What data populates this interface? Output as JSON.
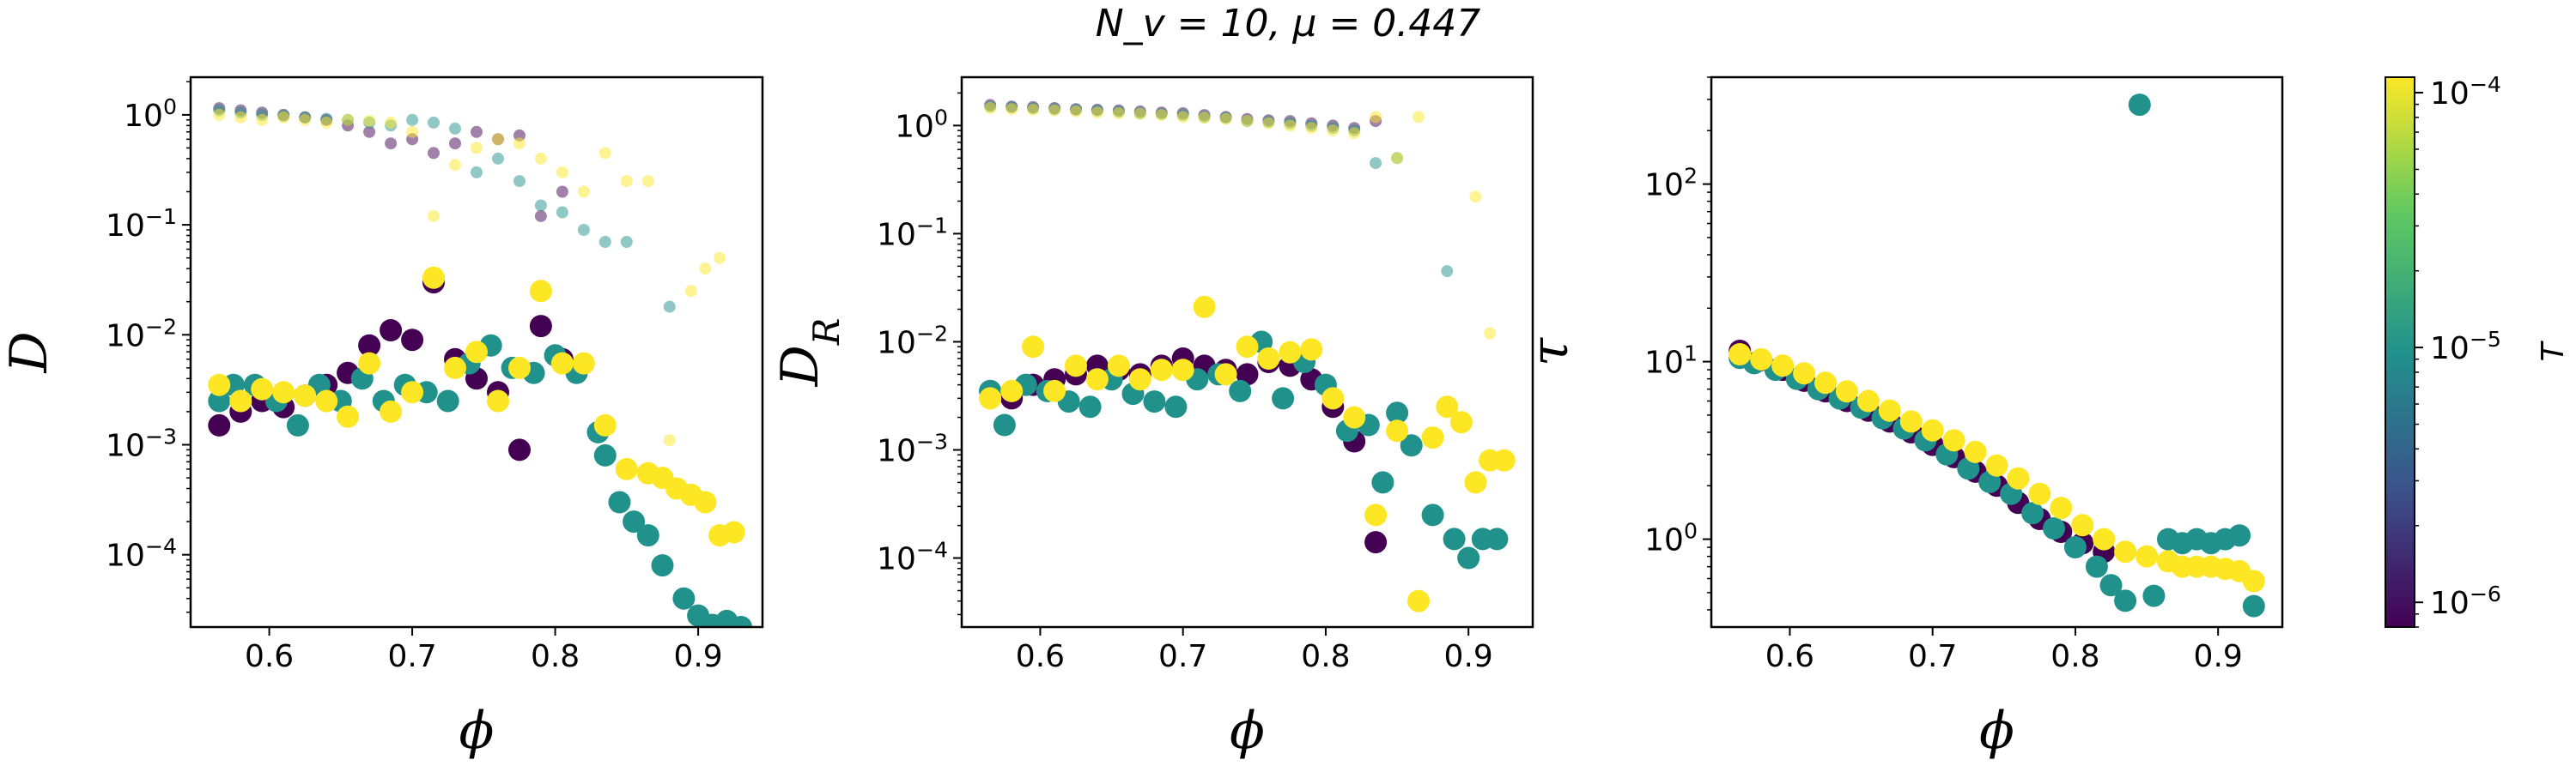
{
  "figure": {
    "suptitle": "N_v = 10, μ = 0.447"
  },
  "colorbar": {
    "label": "T",
    "scale": "log",
    "range": [
      8e-07,
      0.000115
    ],
    "ticks": [
      "10^-6",
      "10^-5",
      "10^-4"
    ],
    "colormap": [
      "#440154",
      "#3b528b",
      "#21918c",
      "#5ec962",
      "#fde725"
    ]
  },
  "chart_data": [
    {
      "type": "scatter",
      "title": "",
      "xlabel": "ϕ",
      "ylabel": "D",
      "xlim": [
        0.545,
        0.945
      ],
      "ylim": [
        2.2e-05,
        2.2
      ],
      "yscale": "log",
      "xticks": [
        "0.6",
        "0.7",
        "0.8",
        "0.9"
      ],
      "yticks": [
        "10^-4",
        "10^-3",
        "10^-2",
        "10^-1",
        "10^0"
      ],
      "series": [
        {
          "color": "#440154",
          "kind": "rotational (faint)",
          "x": [
            0.565,
            0.58,
            0.595,
            0.61,
            0.625,
            0.64,
            0.655,
            0.67,
            0.685,
            0.7,
            0.715,
            0.73,
            0.745,
            0.76,
            0.775,
            0.79,
            0.805
          ],
          "y": [
            1.15,
            1.1,
            1.05,
            1.0,
            0.95,
            0.9,
            0.8,
            0.7,
            0.55,
            0.6,
            0.45,
            0.55,
            0.7,
            0.6,
            0.65,
            0.12,
            0.2
          ]
        },
        {
          "color": "#21918c",
          "kind": "rotational (faint)",
          "x": [
            0.565,
            0.58,
            0.595,
            0.61,
            0.625,
            0.64,
            0.655,
            0.67,
            0.685,
            0.7,
            0.715,
            0.73,
            0.745,
            0.76,
            0.775,
            0.79,
            0.805,
            0.82,
            0.835,
            0.85,
            0.88
          ],
          "y": [
            1.1,
            1.05,
            1.0,
            0.98,
            0.95,
            0.92,
            0.9,
            0.85,
            0.8,
            0.9,
            0.85,
            0.75,
            0.3,
            0.4,
            0.25,
            0.15,
            0.13,
            0.09,
            0.07,
            0.07,
            0.018
          ]
        },
        {
          "color": "#fde725",
          "kind": "rotational (faint)",
          "x": [
            0.565,
            0.58,
            0.595,
            0.61,
            0.625,
            0.64,
            0.655,
            0.67,
            0.685,
            0.7,
            0.715,
            0.73,
            0.745,
            0.76,
            0.775,
            0.79,
            0.805,
            0.82,
            0.835,
            0.85,
            0.865,
            0.88,
            0.895,
            0.905,
            0.915
          ],
          "y": [
            1.0,
            0.95,
            0.9,
            0.95,
            0.9,
            0.85,
            0.9,
            0.88,
            0.85,
            0.7,
            0.12,
            0.35,
            0.5,
            0.6,
            0.55,
            0.4,
            0.3,
            0.2,
            0.45,
            0.25,
            0.25,
            0.0011,
            0.025,
            0.04,
            0.05
          ]
        },
        {
          "color": "#440154",
          "x": [
            0.565,
            0.58,
            0.595,
            0.61,
            0.625,
            0.64,
            0.655,
            0.67,
            0.685,
            0.7,
            0.715,
            0.73,
            0.745,
            0.76,
            0.775,
            0.79,
            0.805
          ],
          "y": [
            0.0015,
            0.002,
            0.0025,
            0.0022,
            0.0028,
            0.0035,
            0.0045,
            0.008,
            0.011,
            0.009,
            0.03,
            0.006,
            0.004,
            0.003,
            0.0009,
            0.012,
            0.006
          ]
        },
        {
          "color": "#21918c",
          "x": [
            0.565,
            0.575,
            0.59,
            0.605,
            0.62,
            0.635,
            0.65,
            0.665,
            0.68,
            0.695,
            0.71,
            0.725,
            0.74,
            0.755,
            0.77,
            0.785,
            0.8,
            0.815,
            0.83,
            0.835,
            0.845,
            0.855,
            0.865,
            0.875,
            0.89,
            0.9,
            0.91,
            0.92,
            0.93
          ],
          "y": [
            0.0025,
            0.0035,
            0.0035,
            0.0025,
            0.0015,
            0.0035,
            0.0025,
            0.004,
            0.0025,
            0.0035,
            0.003,
            0.0025,
            0.0055,
            0.008,
            0.005,
            0.0045,
            0.0065,
            0.0045,
            0.0013,
            0.0008,
            0.0003,
            0.0002,
            0.00015,
            8e-05,
            4e-05,
            2.8e-05,
            2.3e-05,
            2.5e-05,
            2.2e-05
          ]
        },
        {
          "color": "#fde725",
          "x": [
            0.565,
            0.58,
            0.595,
            0.61,
            0.625,
            0.64,
            0.655,
            0.67,
            0.685,
            0.7,
            0.715,
            0.73,
            0.745,
            0.76,
            0.775,
            0.79,
            0.805,
            0.82,
            0.835,
            0.85,
            0.865,
            0.875,
            0.885,
            0.895,
            0.905,
            0.915,
            0.925
          ],
          "y": [
            0.0035,
            0.0025,
            0.0032,
            0.003,
            0.0028,
            0.0025,
            0.0018,
            0.0055,
            0.002,
            0.003,
            0.033,
            0.005,
            0.007,
            0.0025,
            0.005,
            0.025,
            0.0055,
            0.0055,
            0.0015,
            0.0006,
            0.00055,
            0.0005,
            0.0004,
            0.00035,
            0.0003,
            0.00015,
            0.00016
          ]
        }
      ]
    },
    {
      "type": "scatter",
      "title": "",
      "xlabel": "ϕ",
      "ylabel": "D_R",
      "xlim": [
        0.545,
        0.945
      ],
      "ylim": [
        2.3e-05,
        2.8
      ],
      "yscale": "log",
      "xticks": [
        "0.6",
        "0.7",
        "0.8",
        "0.9"
      ],
      "yticks": [
        "10^-4",
        "10^-3",
        "10^-2",
        "10^-1",
        "10^0"
      ],
      "series": [
        {
          "color": "#440154",
          "kind": "rotational (faint)",
          "x": [
            0.565,
            0.58,
            0.595,
            0.61,
            0.625,
            0.64,
            0.655,
            0.67,
            0.685,
            0.7,
            0.715,
            0.73,
            0.745,
            0.76,
            0.775,
            0.79,
            0.805,
            0.82,
            0.835
          ],
          "y": [
            1.55,
            1.5,
            1.48,
            1.45,
            1.42,
            1.4,
            1.38,
            1.35,
            1.32,
            1.3,
            1.25,
            1.2,
            1.15,
            1.12,
            1.1,
            1.05,
            1.0,
            0.95,
            1.1
          ]
        },
        {
          "color": "#21918c",
          "kind": "rotational (faint)",
          "x": [
            0.565,
            0.58,
            0.595,
            0.61,
            0.625,
            0.64,
            0.655,
            0.67,
            0.685,
            0.7,
            0.715,
            0.73,
            0.745,
            0.76,
            0.775,
            0.79,
            0.805,
            0.82,
            0.835,
            0.85,
            0.885
          ],
          "y": [
            1.5,
            1.48,
            1.45,
            1.42,
            1.4,
            1.38,
            1.35,
            1.3,
            1.28,
            1.25,
            1.2,
            1.18,
            1.1,
            1.08,
            1.05,
            1.0,
            0.95,
            0.9,
            0.45,
            0.5,
            0.045
          ]
        },
        {
          "color": "#fde725",
          "kind": "rotational (faint)",
          "x": [
            0.565,
            0.58,
            0.595,
            0.61,
            0.625,
            0.64,
            0.655,
            0.67,
            0.685,
            0.7,
            0.715,
            0.73,
            0.745,
            0.76,
            0.775,
            0.79,
            0.805,
            0.82,
            0.835,
            0.85,
            0.865,
            0.905,
            0.915
          ],
          "y": [
            1.45,
            1.42,
            1.4,
            1.38,
            1.35,
            1.32,
            1.3,
            1.28,
            1.25,
            1.2,
            1.18,
            1.15,
            1.1,
            1.05,
            1.0,
            0.95,
            0.9,
            0.85,
            1.2,
            0.5,
            1.2,
            0.22,
            0.012
          ]
        },
        {
          "color": "#440154",
          "x": [
            0.565,
            0.58,
            0.595,
            0.61,
            0.625,
            0.64,
            0.655,
            0.67,
            0.685,
            0.7,
            0.715,
            0.73,
            0.745,
            0.76,
            0.775,
            0.79,
            0.805,
            0.82,
            0.835
          ],
          "y": [
            0.0035,
            0.003,
            0.004,
            0.0045,
            0.005,
            0.006,
            0.0055,
            0.005,
            0.006,
            0.007,
            0.006,
            0.0055,
            0.005,
            0.0065,
            0.006,
            0.0045,
            0.0025,
            0.0012,
            0.00014
          ]
        },
        {
          "color": "#21918c",
          "x": [
            0.565,
            0.575,
            0.59,
            0.605,
            0.62,
            0.635,
            0.65,
            0.665,
            0.68,
            0.695,
            0.71,
            0.725,
            0.74,
            0.755,
            0.77,
            0.785,
            0.8,
            0.815,
            0.83,
            0.84,
            0.85,
            0.86,
            0.875,
            0.89,
            0.9,
            0.91,
            0.92
          ],
          "y": [
            0.0035,
            0.0017,
            0.004,
            0.0035,
            0.0028,
            0.0025,
            0.0045,
            0.0033,
            0.0028,
            0.0025,
            0.0045,
            0.005,
            0.0035,
            0.01,
            0.003,
            0.0065,
            0.004,
            0.0015,
            0.0017,
            0.0005,
            0.0022,
            0.0011,
            0.00025,
            0.00015,
            0.0001,
            0.00015,
            0.00015
          ]
        },
        {
          "color": "#fde725",
          "x": [
            0.565,
            0.58,
            0.595,
            0.61,
            0.625,
            0.64,
            0.655,
            0.67,
            0.685,
            0.7,
            0.715,
            0.73,
            0.745,
            0.76,
            0.775,
            0.79,
            0.805,
            0.82,
            0.835,
            0.85,
            0.865,
            0.875,
            0.885,
            0.895,
            0.905,
            0.915,
            0.925
          ],
          "y": [
            0.003,
            0.0035,
            0.009,
            0.0035,
            0.006,
            0.0045,
            0.006,
            0.0045,
            0.0055,
            0.0055,
            0.021,
            0.005,
            0.009,
            0.007,
            0.008,
            0.0085,
            0.003,
            0.002,
            0.00025,
            0.0015,
            4e-05,
            0.0013,
            0.0025,
            0.0018,
            0.0005,
            0.0008,
            0.0008
          ]
        }
      ]
    },
    {
      "type": "scatter",
      "title": "",
      "xlabel": "ϕ",
      "ylabel": "τ",
      "xlim": [
        0.545,
        0.945
      ],
      "ylim": [
        0.32,
        400
      ],
      "yscale": "log",
      "xticks": [
        "0.6",
        "0.7",
        "0.8",
        "0.9"
      ],
      "yticks": [
        "10^0",
        "10^1",
        "10^2"
      ],
      "series": [
        {
          "color": "#440154",
          "x": [
            0.565,
            0.58,
            0.595,
            0.61,
            0.625,
            0.64,
            0.655,
            0.67,
            0.685,
            0.7,
            0.715,
            0.73,
            0.745,
            0.76,
            0.775,
            0.79,
            0.805,
            0.82
          ],
          "y": [
            11.5,
            10.2,
            9.0,
            7.8,
            6.8,
            6.0,
            5.3,
            4.6,
            4.0,
            3.4,
            2.9,
            2.4,
            2.0,
            1.6,
            1.3,
            1.1,
            0.95,
            0.85
          ]
        },
        {
          "color": "#21918c",
          "x": [
            0.565,
            0.575,
            0.59,
            0.605,
            0.62,
            0.635,
            0.65,
            0.665,
            0.68,
            0.695,
            0.71,
            0.725,
            0.74,
            0.755,
            0.77,
            0.785,
            0.8,
            0.815,
            0.825,
            0.835,
            0.845,
            0.855,
            0.865,
            0.875,
            0.885,
            0.895,
            0.905,
            0.915,
            0.925
          ],
          "y": [
            10.5,
            9.8,
            9.0,
            8.0,
            7.0,
            6.2,
            5.5,
            4.8,
            4.2,
            3.6,
            3.0,
            2.5,
            2.1,
            1.8,
            1.4,
            1.15,
            0.9,
            0.7,
            0.55,
            0.45,
            280,
            0.48,
            1.0,
            0.95,
            1.0,
            0.95,
            1.0,
            1.05,
            0.42
          ]
        },
        {
          "color": "#fde725",
          "x": [
            0.565,
            0.58,
            0.595,
            0.61,
            0.625,
            0.64,
            0.655,
            0.67,
            0.685,
            0.7,
            0.715,
            0.73,
            0.745,
            0.76,
            0.775,
            0.79,
            0.805,
            0.82,
            0.835,
            0.85,
            0.865,
            0.875,
            0.885,
            0.895,
            0.905,
            0.915,
            0.925
          ],
          "y": [
            11.0,
            10.3,
            9.5,
            8.6,
            7.6,
            6.8,
            6.0,
            5.3,
            4.6,
            4.1,
            3.6,
            3.1,
            2.6,
            2.2,
            1.8,
            1.5,
            1.2,
            1.0,
            0.85,
            0.8,
            0.75,
            0.7,
            0.7,
            0.7,
            0.68,
            0.66,
            0.58
          ]
        }
      ]
    }
  ]
}
